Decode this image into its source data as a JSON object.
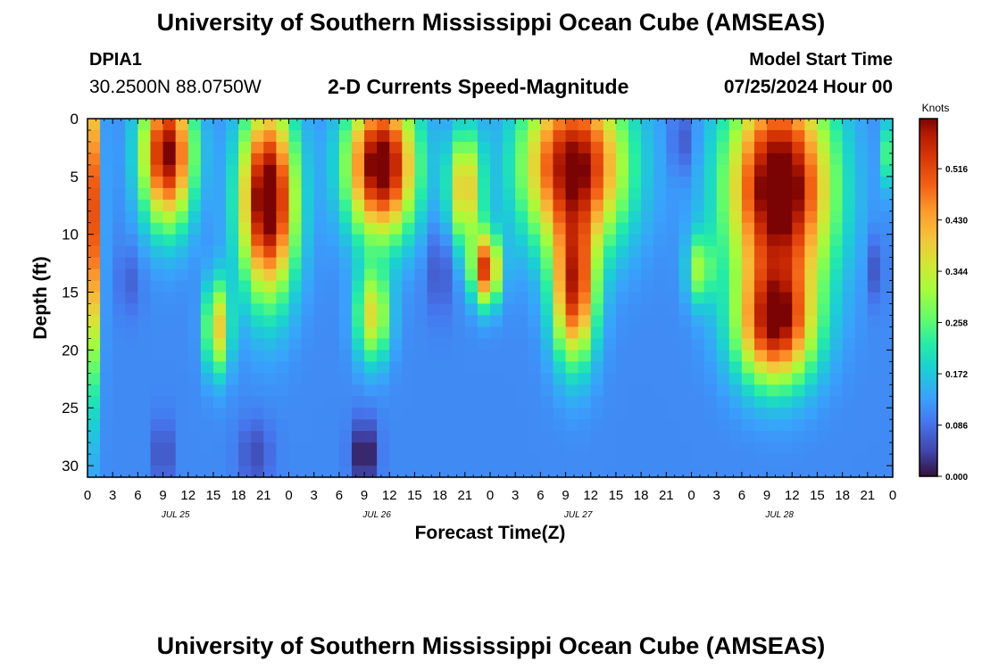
{
  "header": {
    "title": "University of Southern Mississippi Ocean Cube (AMSEAS)",
    "station_id": "DPIA1",
    "station_coords": "30.2500N  88.0750W",
    "subtitle": "2-D Currents Speed-Magnitude",
    "model_start_label": "Model Start Time",
    "model_start_value": "07/25/2024 Hour 00"
  },
  "footer": {
    "title": "University of Southern Mississippi Ocean Cube (AMSEAS)"
  },
  "chart_data": {
    "type": "heatmap",
    "title": "2-D Currents Speed-Magnitude",
    "xlabel": "Forecast Time(Z)",
    "ylabel": "Depth (ft)",
    "x_range_hours": [
      0,
      96
    ],
    "x_tick_labels": [
      "0",
      "3",
      "6",
      "9",
      "12",
      "15",
      "18",
      "21",
      "0",
      "3",
      "6",
      "9",
      "12",
      "15",
      "18",
      "21",
      "0",
      "3",
      "6",
      "9",
      "12",
      "15",
      "18",
      "21",
      "0",
      "3",
      "6",
      "9",
      "12",
      "15",
      "18",
      "21",
      "0"
    ],
    "date_labels": [
      {
        "label": "JUL 25",
        "hour": 10.5
      },
      {
        "label": "JUL 26",
        "hour": 34.5
      },
      {
        "label": "JUL 27",
        "hour": 58.5
      },
      {
        "label": "JUL 28",
        "hour": 82.5
      }
    ],
    "ylim": [
      0,
      31
    ],
    "y_inverted": true,
    "y_ticks": [
      0,
      5,
      10,
      15,
      20,
      25,
      30
    ],
    "colorbar": {
      "unit": "Knots",
      "min": 0.0,
      "max": 0.6,
      "tick_values": [
        0.0,
        0.086,
        0.172,
        0.258,
        0.344,
        0.43,
        0.516
      ],
      "tick_labels": [
        "0.000",
        "0.086",
        "0.172",
        "0.258",
        "0.344",
        "0.430",
        "0.516"
      ],
      "colormap": "turbo"
    },
    "grid_resolution": {
      "hour_step": 1.5,
      "depth_step": 1
    },
    "blobs": [
      {
        "hour": 0.5,
        "depth": 8,
        "hw": 1.0,
        "hd": 14,
        "amp": 0.42
      },
      {
        "hour": 9.5,
        "depth": 3,
        "hw": 3.0,
        "hd": 6,
        "amp": 0.5
      },
      {
        "hour": 15.5,
        "depth": 18,
        "hw": 1.5,
        "hd": 4,
        "amp": 0.28
      },
      {
        "hour": 21.5,
        "depth": 7,
        "hw": 3.2,
        "hd": 8,
        "amp": 0.56
      },
      {
        "hour": 35.0,
        "depth": 4,
        "hw": 4.0,
        "hd": 6,
        "amp": 0.54
      },
      {
        "hour": 34.0,
        "depth": 17,
        "hw": 2.0,
        "hd": 4,
        "amp": 0.26
      },
      {
        "hour": 47.5,
        "depth": 13,
        "hw": 1.6,
        "hd": 3,
        "amp": 0.42
      },
      {
        "hour": 45.0,
        "depth": 6,
        "hw": 2.0,
        "hd": 5,
        "amp": 0.3
      },
      {
        "hour": 58.0,
        "depth": 4,
        "hw": 6.0,
        "hd": 7,
        "amp": 0.5
      },
      {
        "hour": 58.0,
        "depth": 15,
        "hw": 2.5,
        "hd": 6,
        "amp": 0.42
      },
      {
        "hour": 82.5,
        "depth": 6,
        "hw": 6.0,
        "hd": 9,
        "amp": 0.56
      },
      {
        "hour": 82.0,
        "depth": 18,
        "hw": 4.5,
        "hd": 5,
        "amp": 0.42
      },
      {
        "hour": 73.0,
        "depth": 13,
        "hw": 1.5,
        "hd": 3,
        "amp": 0.18
      },
      {
        "hour": 96.0,
        "depth": 3,
        "hw": 1.0,
        "hd": 3,
        "amp": 0.22
      }
    ],
    "lows": [
      {
        "hour": 9.0,
        "depth": 29,
        "hw": 1.0,
        "hd": 3,
        "amp": 0.08
      },
      {
        "hour": 20.0,
        "depth": 29,
        "hw": 2.0,
        "hd": 3,
        "amp": 0.06
      },
      {
        "hour": 33.0,
        "depth": 29,
        "hw": 1.5,
        "hd": 3,
        "amp": 0.12
      },
      {
        "hour": 42.0,
        "depth": 13,
        "hw": 1.5,
        "hd": 4,
        "amp": 0.06
      },
      {
        "hour": 71.0,
        "depth": 2,
        "hw": 1.5,
        "hd": 3,
        "amp": 0.06
      },
      {
        "hour": 94.0,
        "depth": 13,
        "hw": 1.0,
        "hd": 3,
        "amp": 0.06
      },
      {
        "hour": 5.0,
        "depth": 14,
        "hw": 1.5,
        "hd": 3,
        "amp": 0.04
      }
    ]
  }
}
